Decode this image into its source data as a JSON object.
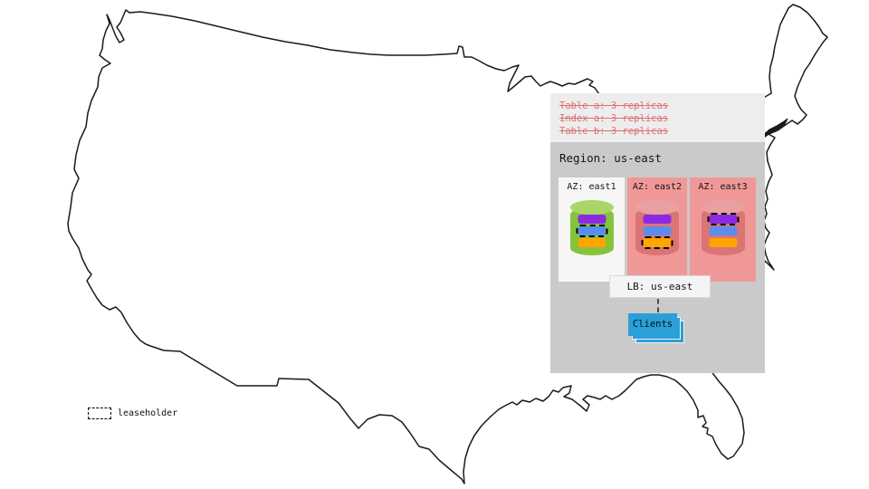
{
  "colors": {
    "policy_red": "#e06e6e",
    "purple": "#8a2be2",
    "blue": "#5b8def",
    "orange": "#ffa500",
    "clients_blue": "#2a9fd8",
    "green_az_bg": "#f6f6f6",
    "green_cyl_body": "#86c33d",
    "green_cyl_top": "#abd566",
    "red_az_bg": "#f09898",
    "red_cyl_body": "#dc7474",
    "red_cyl_top": "#e9a0a0",
    "panel_light_gray": "#ededed",
    "panel_dark_gray": "#cacaca",
    "map_outline": "#1a1a1a"
  },
  "policy_panel": {
    "lines": [
      "Table a: 3 replicas",
      "Index a: 3 replicas",
      "Table b: 3 replicas"
    ]
  },
  "region_panel": {
    "title": "Region: us-east",
    "azs": [
      {
        "label": "AZ: east1",
        "theme": "green",
        "replicas": [
          {
            "color": "purple",
            "leaseholder": false
          },
          {
            "color": "blue",
            "leaseholder": true
          },
          {
            "color": "orange",
            "leaseholder": false
          }
        ]
      },
      {
        "label": "AZ: east2",
        "theme": "red",
        "replicas": [
          {
            "color": "purple",
            "leaseholder": false
          },
          {
            "color": "blue",
            "leaseholder": false
          },
          {
            "color": "orange",
            "leaseholder": true
          }
        ]
      },
      {
        "label": "AZ: east3",
        "theme": "red",
        "replicas": [
          {
            "color": "purple",
            "leaseholder": true
          },
          {
            "color": "blue",
            "leaseholder": false
          },
          {
            "color": "orange",
            "leaseholder": false
          }
        ]
      }
    ],
    "lb_label": "LB: us-east",
    "clients_label": "Clients"
  },
  "legend": {
    "label": "leaseholder"
  }
}
